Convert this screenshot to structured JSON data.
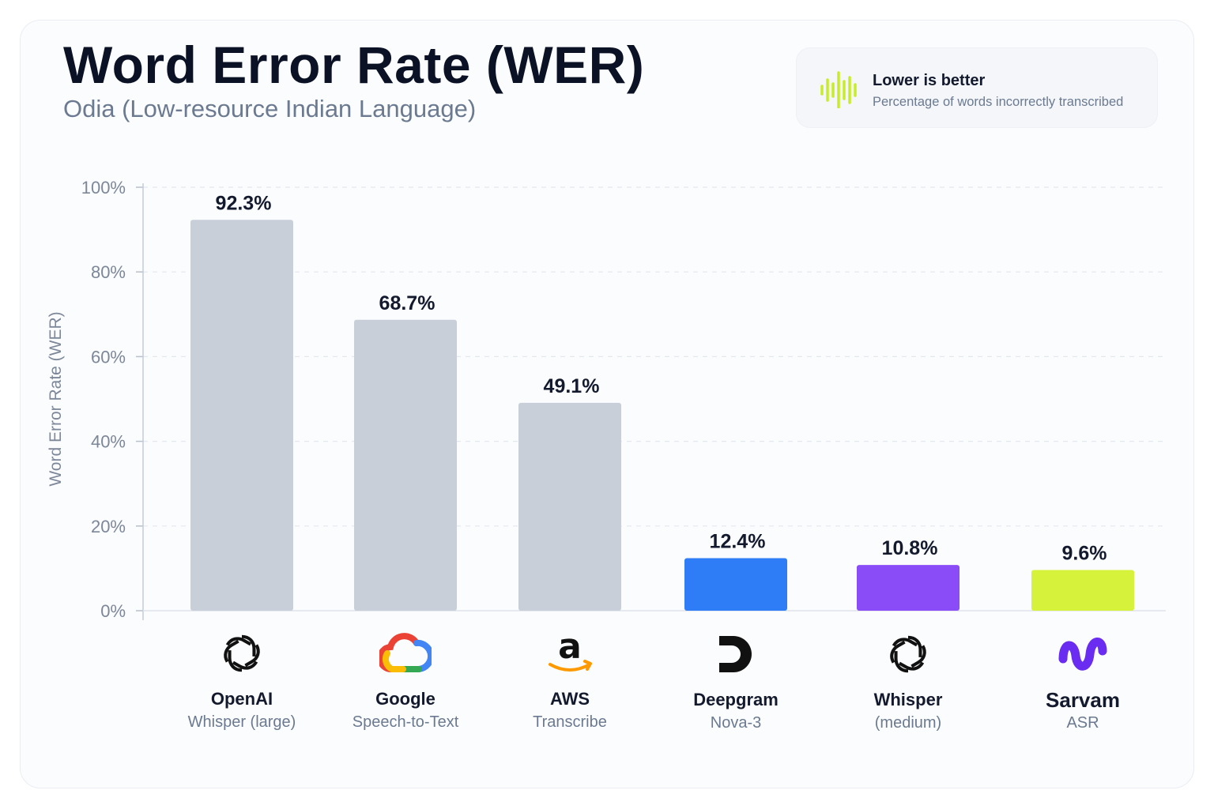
{
  "header": {
    "title": "Word Error Rate (WER)",
    "subtitle": "Odia (Low-resource Indian Language)"
  },
  "legend_card": {
    "title": "Lower is better",
    "description": "Percentage of words incorrectly transcribed",
    "icon": "waveform-icon",
    "icon_color": "#c8ec2a"
  },
  "chart_data": {
    "type": "bar",
    "title": "Word Error Rate (WER)",
    "subtitle": "Odia (Low-resource Indian Language)",
    "ylabel": "Word Error Rate (WER)",
    "ylim": [
      0,
      100
    ],
    "yticks": [
      "0%",
      "20%",
      "40%",
      "60%",
      "80%",
      "100%"
    ],
    "ytick_values": [
      0,
      20,
      40,
      60,
      80,
      100
    ],
    "grid": true,
    "categories": [
      "OpenAI Whisper (large)",
      "Google Speech-to-Text",
      "AWS Transcribe",
      "Deepgram Nova-3",
      "Whisper (medium)",
      "Sarvam ASR"
    ],
    "values": [
      92.3,
      68.7,
      49.1,
      12.4,
      10.8,
      9.6
    ],
    "value_labels": [
      "92.3%",
      "68.7%",
      "49.1%",
      "12.4%",
      "10.8%",
      "9.6%"
    ],
    "colors": [
      "#c9cfd9",
      "#c9cfd9",
      "#c9cfd9",
      "#2f7df6",
      "#8a4cf7",
      "#d6f23a"
    ]
  },
  "categories_display": [
    {
      "name": "OpenAI",
      "sub": "Whisper (large)",
      "icon": "openai-icon"
    },
    {
      "name": "Google",
      "sub": "Speech-to-Text",
      "icon": "google-cloud-icon"
    },
    {
      "name": "AWS",
      "sub": "Transcribe",
      "icon": "amazon-icon"
    },
    {
      "name": "Deepgram",
      "sub": "Nova-3",
      "icon": "deepgram-icon"
    },
    {
      "name": "Whisper",
      "sub": "(medium)",
      "icon": "openai-icon"
    },
    {
      "name": "Sarvam",
      "sub": "ASR",
      "icon": "sarvam-icon"
    }
  ]
}
